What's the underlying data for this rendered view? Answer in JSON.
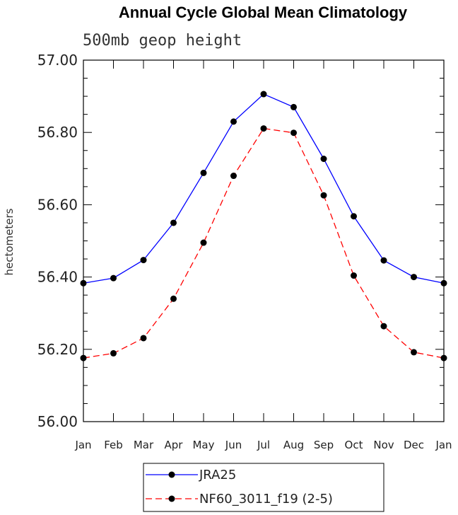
{
  "chart_data": {
    "type": "line",
    "title": "Annual Cycle Global Mean Climatology",
    "subtitle": "500mb geop height",
    "ylabel": "hectometers",
    "xlabel": "",
    "ylim": [
      56.0,
      57.0
    ],
    "yticks": [
      "56.00",
      "56.20",
      "56.40",
      "56.60",
      "56.80",
      "57.00"
    ],
    "ytick_values": [
      56.0,
      56.2,
      56.4,
      56.6,
      56.8,
      57.0
    ],
    "categories": [
      "Jan",
      "Feb",
      "Mar",
      "Apr",
      "May",
      "Jun",
      "Jul",
      "Aug",
      "Sep",
      "Oct",
      "Nov",
      "Dec",
      "Jan"
    ],
    "series": [
      {
        "name": "JRA25",
        "color": "#0000ff",
        "dash": "solid",
        "values": [
          56.383,
          56.397,
          56.447,
          56.55,
          56.688,
          56.83,
          56.906,
          56.87,
          56.727,
          56.568,
          56.446,
          56.4,
          56.383
        ]
      },
      {
        "name": "NF60_3011_f19 (2-5)",
        "color": "#ff0000",
        "dash": "dashed",
        "values": [
          56.176,
          56.189,
          56.231,
          56.34,
          56.495,
          56.68,
          56.811,
          56.799,
          56.626,
          56.404,
          56.264,
          56.192,
          56.176
        ]
      }
    ],
    "legend_position": "bottom-center"
  }
}
